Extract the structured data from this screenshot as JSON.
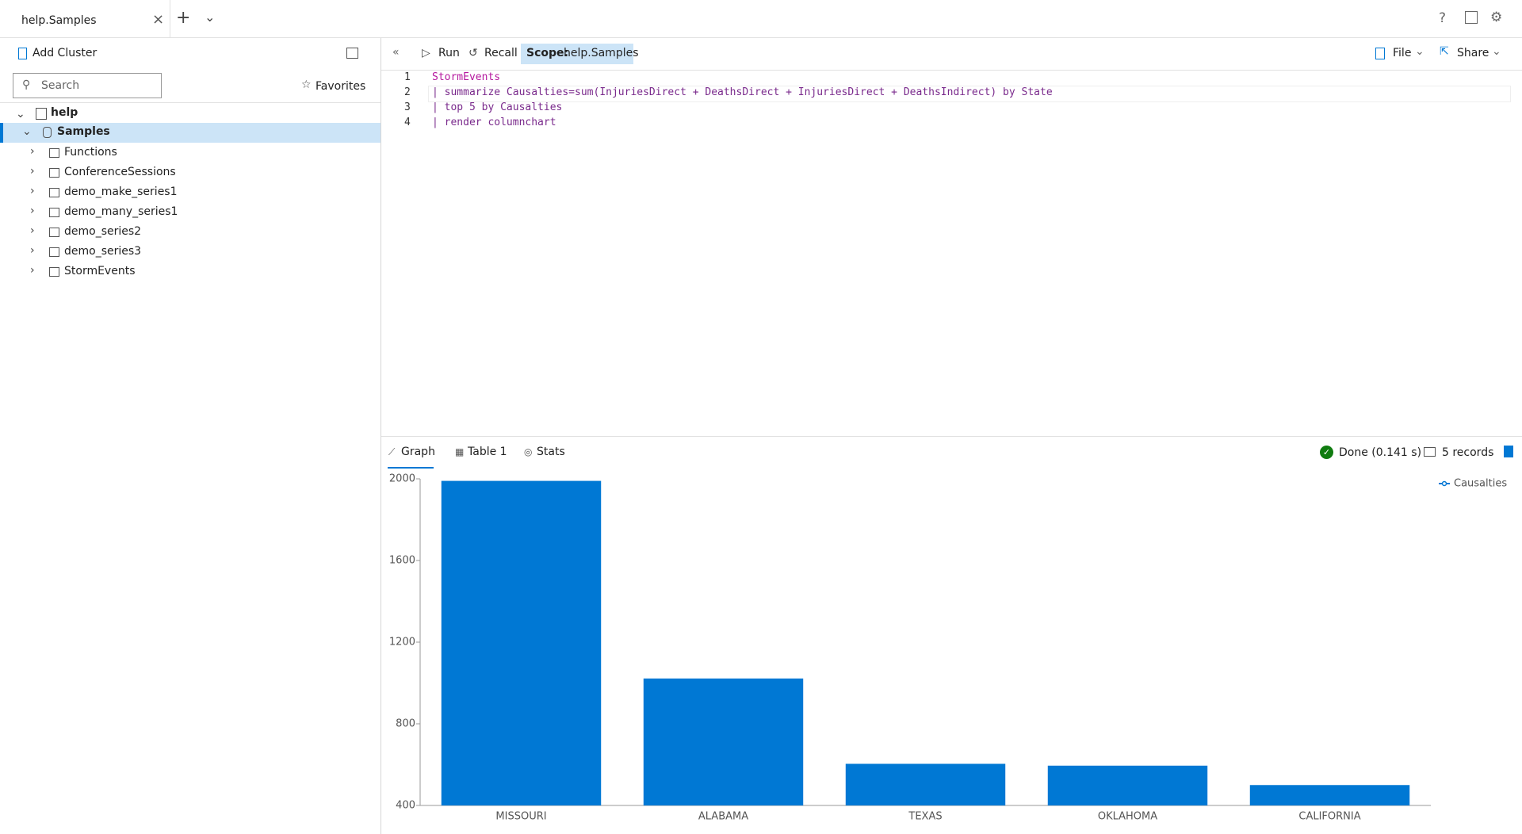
{
  "tab": {
    "title": "help.Samples"
  },
  "left_toolbar": {
    "add_cluster": "Add Cluster"
  },
  "search": {
    "placeholder": "Search",
    "favorites": "Favorites"
  },
  "tree": {
    "cluster": "help",
    "database": "Samples",
    "items": [
      "Functions",
      "ConferenceSessions",
      "demo_make_series1",
      "demo_many_series1",
      "demo_series2",
      "demo_series3",
      "StormEvents"
    ]
  },
  "toolbar": {
    "run": "Run",
    "recall": "Recall",
    "scope_label": "Scope:",
    "scope_value": "help.Samples",
    "file": "File",
    "share": "Share"
  },
  "editor": {
    "line_numbers": [
      1,
      2,
      3,
      4
    ],
    "lines": [
      "StormEvents",
      "| summarize Causalties=sum(InjuriesDirect + DeathsDirect + InjuriesDirect + DeathsIndirect) by State",
      "| top 5 by Causalties",
      "| render columnchart"
    ]
  },
  "results": {
    "tabs": [
      "Graph",
      "Table 1",
      "Stats"
    ],
    "status": "Done (0.141 s)",
    "records": "5 records"
  },
  "chart_data": {
    "type": "bar",
    "categories": [
      "MISSOURI",
      "ALABAMA",
      "TEXAS",
      "OKLAHOMA",
      "CALIFORNIA"
    ],
    "series": [
      {
        "name": "Causalties",
        "color": "#0078d4",
        "values": [
          1990,
          1022,
          604,
          595,
          500
        ]
      }
    ],
    "ylim": [
      400,
      2000
    ],
    "yticks": [
      400,
      800,
      1200,
      1600,
      2000
    ],
    "legend": "top-right"
  }
}
